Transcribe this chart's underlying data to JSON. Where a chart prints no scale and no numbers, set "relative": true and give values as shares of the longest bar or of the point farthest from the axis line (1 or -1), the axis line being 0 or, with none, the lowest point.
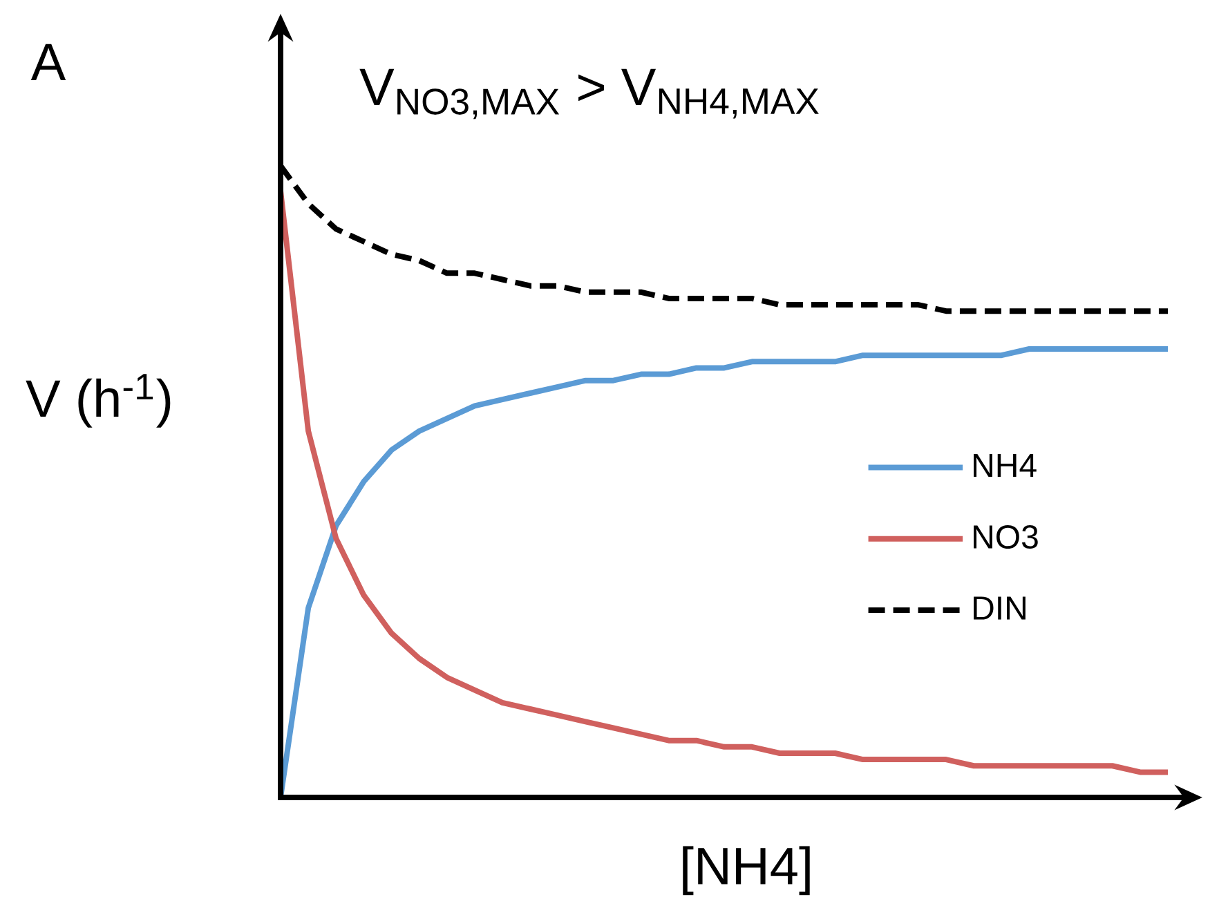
{
  "chart_data": {
    "type": "line",
    "title": "V$_{NO3,MAX}$ > V$_{NH4,MAX}$",
    "xlabel": "[NH4]",
    "ylabel": "V (h$^{-1}$)",
    "annotations": [
      "A"
    ],
    "relative": true,
    "legend": "right",
    "categories": [
      null,
      null,
      null,
      null,
      null,
      null,
      null,
      null,
      null,
      null,
      null,
      null,
      null,
      null,
      null,
      null,
      null,
      null,
      null,
      null,
      null,
      null,
      null,
      null,
      null,
      null,
      null,
      null,
      null,
      null,
      null,
      null,
      null
    ],
    "series": [
      {
        "name": "NH4",
        "color": "#5b9bd5",
        "line_style": "solid",
        "values": [
          0,
          0.3,
          0.43,
          0.5,
          0.55,
          0.58,
          0.6,
          0.62,
          0.63,
          0.64,
          0.65,
          0.66,
          0.66,
          0.67,
          0.67,
          0.68,
          0.68,
          0.69,
          0.69,
          0.69,
          0.69,
          0.7,
          0.7,
          0.7,
          0.7,
          0.7,
          0.7,
          0.71,
          0.71,
          0.71,
          0.71,
          0.71,
          0.71
        ]
      },
      {
        "name": "NO3",
        "color": "#d0605e",
        "line_style": "solid",
        "values": [
          0.96,
          0.58,
          0.41,
          0.32,
          0.26,
          0.22,
          0.19,
          0.17,
          0.15,
          0.14,
          0.13,
          0.12,
          0.11,
          0.1,
          0.09,
          0.09,
          0.08,
          0.08,
          0.07,
          0.07,
          0.07,
          0.06,
          0.06,
          0.06,
          0.06,
          0.05,
          0.05,
          0.05,
          0.05,
          0.05,
          0.05,
          0.04,
          0.04
        ]
      },
      {
        "name": "DIN",
        "color": "#000000",
        "line_style": "dashed",
        "values": [
          1.0,
          0.94,
          0.9,
          0.88,
          0.86,
          0.85,
          0.83,
          0.83,
          0.82,
          0.81,
          0.81,
          0.8,
          0.8,
          0.8,
          0.79,
          0.79,
          0.79,
          0.79,
          0.78,
          0.78,
          0.78,
          0.78,
          0.78,
          0.78,
          0.77,
          0.77,
          0.77,
          0.77,
          0.77,
          0.77,
          0.77,
          0.77,
          0.77
        ]
      }
    ]
  }
}
